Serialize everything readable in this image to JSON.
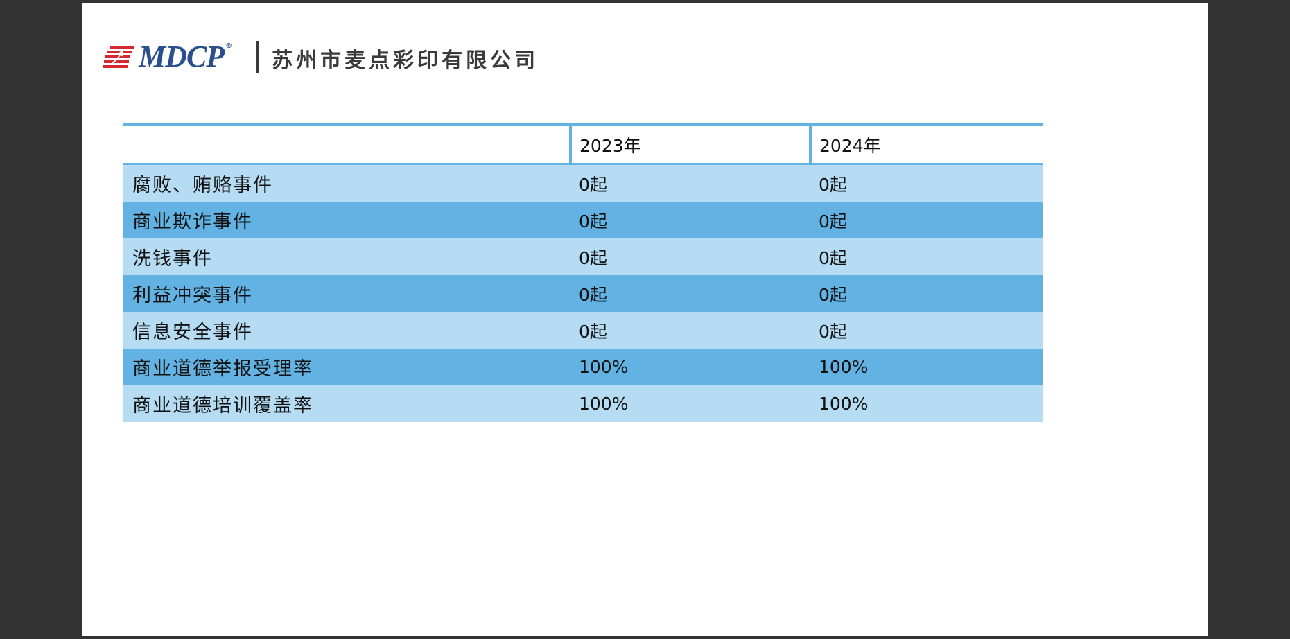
{
  "header": {
    "logo_text": "MDCP",
    "logo_reg": "®",
    "company_name": "苏州市麦点彩印有限公司"
  },
  "table": {
    "columns": [
      "",
      "2023年",
      "2024年"
    ],
    "rows": [
      {
        "label": "腐败、贿赂事件",
        "y2023": "0起",
        "y2024": "0起"
      },
      {
        "label": "商业欺诈事件",
        "y2023": "0起",
        "y2024": "0起"
      },
      {
        "label": "洗钱事件",
        "y2023": "0起",
        "y2024": "0起"
      },
      {
        "label": "利益冲突事件",
        "y2023": "0起",
        "y2024": "0起"
      },
      {
        "label": "信息安全事件",
        "y2023": "0起",
        "y2024": "0起"
      },
      {
        "label": "商业道德举报受理率",
        "y2023": "100%",
        "y2024": "100%"
      },
      {
        "label": "商业道德培训覆盖率",
        "y2023": "100%",
        "y2024": "100%"
      }
    ]
  },
  "colors": {
    "accent": "#62b3e3",
    "row_light": "#b5dcf3",
    "logo_blue": "#2b4f8c",
    "logo_red": "#d6282e"
  }
}
